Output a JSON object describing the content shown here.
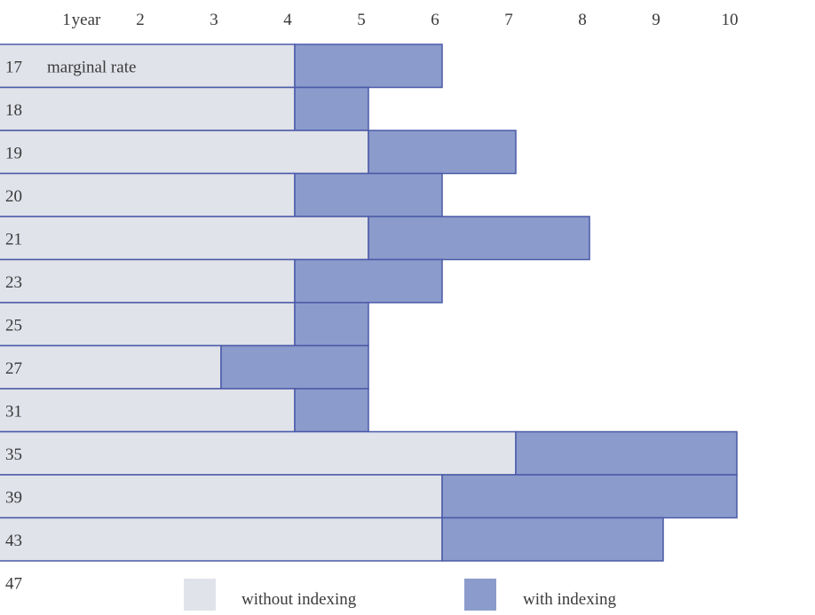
{
  "chart_data": {
    "type": "bar",
    "orientation": "horizontal-stacked",
    "x_axis_label": "year",
    "x_ticks": [
      "1",
      "2",
      "3",
      "4",
      "5",
      "6",
      "7",
      "8",
      "9",
      "10"
    ],
    "xlim": [
      0,
      10
    ],
    "row_axis_label": "marginal rate",
    "categories": [
      "17",
      "18",
      "19",
      "20",
      "21",
      "23",
      "25",
      "27",
      "31",
      "35",
      "39",
      "43",
      "47"
    ],
    "series": [
      {
        "name": "without indexing",
        "color": "#e1e3ea",
        "values": [
          4,
          4,
          5,
          4,
          5,
          4,
          4,
          3,
          4,
          7,
          6,
          6,
          null
        ]
      },
      {
        "name": "with indexing",
        "color": "#8b9bcb",
        "values": [
          2,
          1,
          2,
          2,
          3,
          2,
          1,
          2,
          1,
          3,
          4,
          3,
          null
        ]
      }
    ],
    "legend_position": "bottom-center",
    "grid": false
  },
  "colors": {
    "bar_outline": "#4a5aa8",
    "text": "#3a3a3a"
  }
}
